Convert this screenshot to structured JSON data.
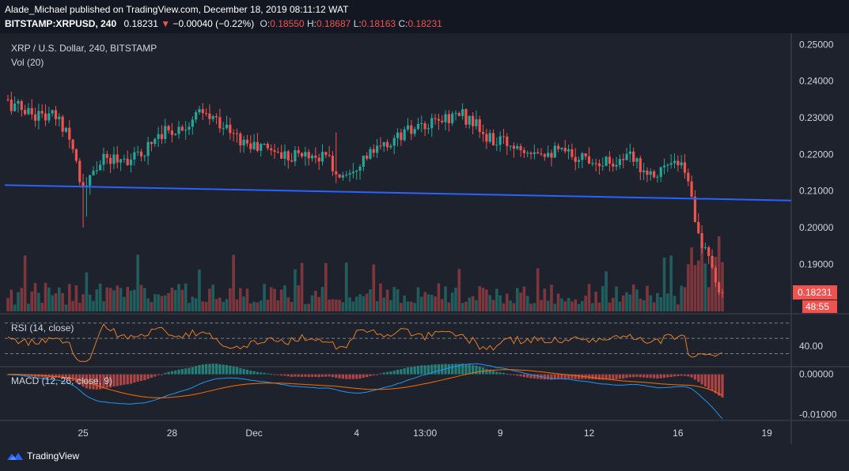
{
  "header": {
    "publisher_line": "Alade_Michael published on TradingView.com, December 18, 2019 08:11:12 WAT",
    "symbol": "BITSTAMP:XRPUSD, 240",
    "last": "0.18231",
    "change_arrow": "▼",
    "change": "−0.00040 (−0.22%)",
    "o_label": "O:",
    "o": "0.18550",
    "h_label": "H:",
    "h": "0.18687",
    "l_label": "L:",
    "l": "0.18163",
    "c_label": "C:",
    "c": "0.18231"
  },
  "panes": {
    "price_title": "XRP / U.S. Dollar, 240, BITSTAMP",
    "vol_title": "Vol (20)",
    "rsi_title": "RSI (14, close)",
    "macd_title": "MACD (12, 26, close, 9)"
  },
  "price_tag": "0.18231",
  "countdown_tag": "48:55",
  "footer": {
    "brand": "TradingView"
  },
  "colors": {
    "up": "#26a69a",
    "down": "#ef5350",
    "trend": "#2962ff",
    "rsi": "#e67e22",
    "macd": "#2196f3",
    "signal": "#ff6d00",
    "bg": "#1e222d"
  },
  "chart_data": [
    {
      "type": "candlestick",
      "title": "XRP / U.S. Dollar, 240, BITSTAMP",
      "x_ticks": [
        "25",
        "28",
        "Dec",
        "4",
        "13:00",
        "9",
        "12",
        "16",
        "19"
      ],
      "y_ticks": [
        "0.25000",
        "0.24000",
        "0.23000",
        "0.22000",
        "0.21000",
        "0.20000",
        "0.19000"
      ],
      "ylim": [
        0.178,
        0.252
      ],
      "waypoints": [
        [
          0,
          0.234
        ],
        [
          8,
          0.231
        ],
        [
          14,
          0.23
        ],
        [
          18,
          0.226
        ],
        [
          22,
          0.21
        ],
        [
          24,
          0.213
        ],
        [
          27,
          0.218
        ],
        [
          32,
          0.219
        ],
        [
          38,
          0.219
        ],
        [
          44,
          0.226
        ],
        [
          50,
          0.227
        ],
        [
          56,
          0.231
        ],
        [
          62,
          0.229
        ],
        [
          66,
          0.225
        ],
        [
          72,
          0.222
        ],
        [
          76,
          0.222
        ],
        [
          80,
          0.22
        ],
        [
          88,
          0.22
        ],
        [
          94,
          0.219
        ],
        [
          96,
          0.214
        ],
        [
          100,
          0.216
        ],
        [
          104,
          0.219
        ],
        [
          110,
          0.222
        ],
        [
          116,
          0.226
        ],
        [
          122,
          0.227
        ],
        [
          128,
          0.23
        ],
        [
          132,
          0.231
        ],
        [
          136,
          0.229
        ],
        [
          140,
          0.224
        ],
        [
          146,
          0.223
        ],
        [
          152,
          0.222
        ],
        [
          158,
          0.221
        ],
        [
          164,
          0.22
        ],
        [
          170,
          0.219
        ],
        [
          176,
          0.218
        ],
        [
          182,
          0.219
        ],
        [
          188,
          0.215
        ],
        [
          194,
          0.217
        ],
        [
          198,
          0.216
        ],
        [
          200,
          0.208
        ],
        [
          202,
          0.199
        ],
        [
          204,
          0.193
        ],
        [
          206,
          0.188
        ],
        [
          207,
          0.184
        ],
        [
          209,
          0.183
        ]
      ],
      "last_close": 0.18231,
      "trendline": [
        [
          0.2116,
          0.2074
        ]
      ],
      "grid": false
    },
    {
      "type": "bar",
      "title": "Vol (20)",
      "note": "volume bars, colored by candle direction"
    },
    {
      "type": "line",
      "title": "RSI (14, close)",
      "y_ticks": [
        "40.00"
      ],
      "levels": [
        70,
        50,
        30
      ],
      "ylim": [
        15,
        80
      ]
    },
    {
      "type": "line",
      "title": "MACD (12, 26, close, 9)",
      "y_ticks": [
        "0.00000",
        "-0.01000"
      ],
      "ylim": [
        -0.0115,
        0.0015
      ]
    }
  ]
}
